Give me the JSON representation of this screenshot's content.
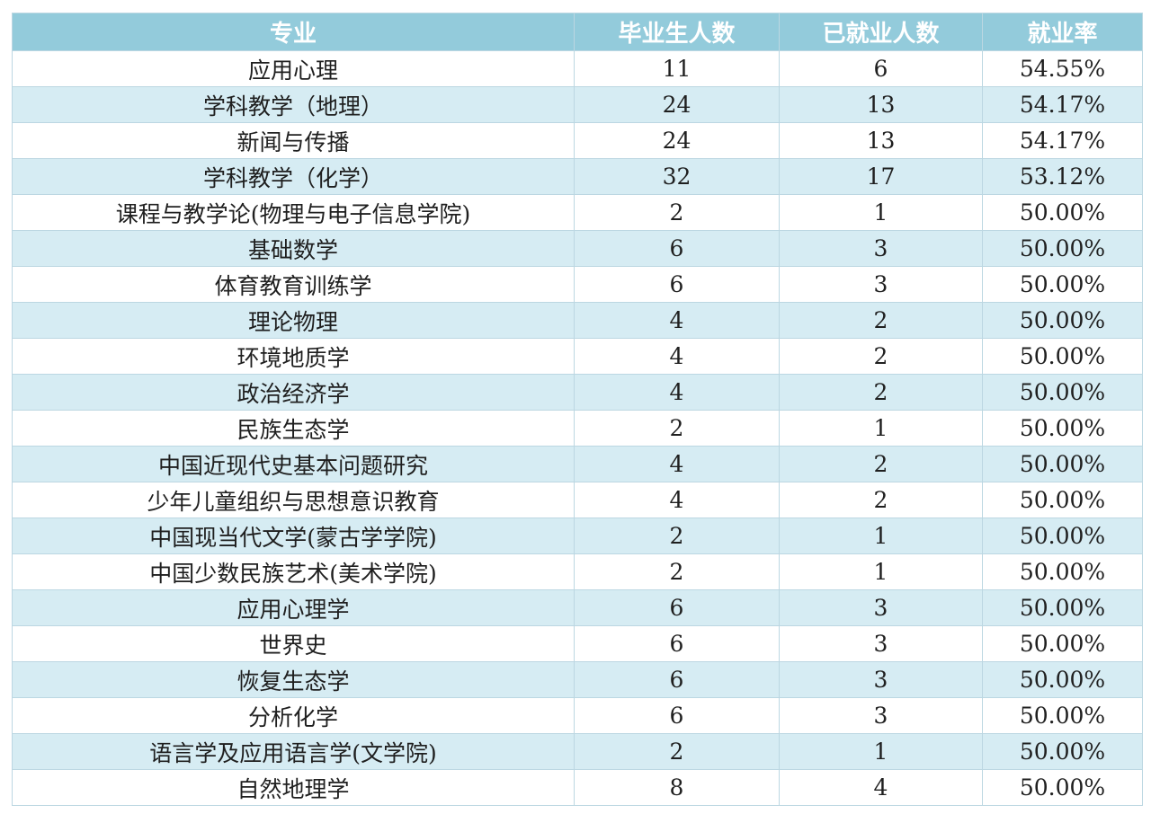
{
  "table": {
    "headers": [
      "专业",
      "毕业生人数",
      "已就业人数",
      "就业率"
    ],
    "rows": [
      [
        "应用心理",
        "11",
        "6",
        "54.55%"
      ],
      [
        "学科教学（地理）",
        "24",
        "13",
        "54.17%"
      ],
      [
        "新闻与传播",
        "24",
        "13",
        "54.17%"
      ],
      [
        "学科教学（化学）",
        "32",
        "17",
        "53.12%"
      ],
      [
        "课程与教学论(物理与电子信息学院)",
        "2",
        "1",
        "50.00%"
      ],
      [
        "基础数学",
        "6",
        "3",
        "50.00%"
      ],
      [
        "体育教育训练学",
        "6",
        "3",
        "50.00%"
      ],
      [
        "理论物理",
        "4",
        "2",
        "50.00%"
      ],
      [
        "环境地质学",
        "4",
        "2",
        "50.00%"
      ],
      [
        "政治经济学",
        "4",
        "2",
        "50.00%"
      ],
      [
        "民族生态学",
        "2",
        "1",
        "50.00%"
      ],
      [
        "中国近现代史基本问题研究",
        "4",
        "2",
        "50.00%"
      ],
      [
        "少年儿童组织与思想意识教育",
        "4",
        "2",
        "50.00%"
      ],
      [
        "中国现当代文学(蒙古学学院)",
        "2",
        "1",
        "50.00%"
      ],
      [
        "中国少数民族艺术(美术学院)",
        "2",
        "1",
        "50.00%"
      ],
      [
        "应用心理学",
        "6",
        "3",
        "50.00%"
      ],
      [
        "世界史",
        "6",
        "3",
        "50.00%"
      ],
      [
        "恢复生态学",
        "6",
        "3",
        "50.00%"
      ],
      [
        "分析化学",
        "6",
        "3",
        "50.00%"
      ],
      [
        "语言学及应用语言学(文学院)",
        "2",
        "1",
        "50.00%"
      ],
      [
        "自然地理学",
        "8",
        "4",
        "50.00%"
      ]
    ]
  },
  "colors": {
    "header_bg": "#93cbdb",
    "header_text": "#ffffff",
    "stripe_bg": "#d6ecf3",
    "grid_line": "#bcd7e2"
  }
}
